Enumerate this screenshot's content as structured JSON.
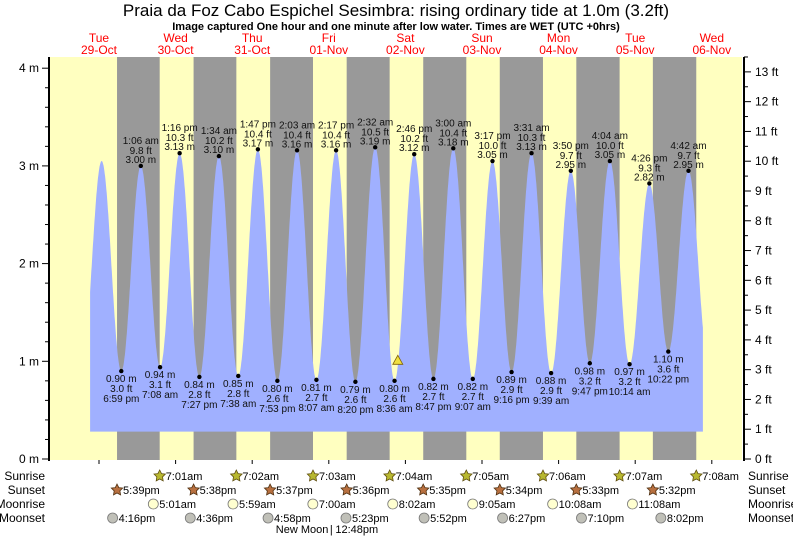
{
  "title": "Praia da Foz Cabo Espichel Sesimbra: rising  ordinary tide at 1.0m (3.2ft)",
  "subtitle": "Image captured One hour and one minute after low water. Times are WET (UTC +0hrs)",
  "colors": {
    "day": "#ffffc0",
    "night": "#999999",
    "tide": "#a0b0ff",
    "date_label": "#ff0000",
    "sunrise": "#b8b830",
    "sunset": "#b87040",
    "moonrise": "#ffffd0",
    "moonset": "#c0c0b8"
  },
  "chart_data": {
    "type": "area",
    "title": "Praia da Foz Cabo Espichel Sesimbra: rising  ordinary tide at 1.0m (3.2ft)",
    "days": [
      {
        "dow": "Tue",
        "date": "29-Oct"
      },
      {
        "dow": "Wed",
        "date": "30-Oct"
      },
      {
        "dow": "Thu",
        "date": "31-Oct"
      },
      {
        "dow": "Fri",
        "date": "01-Nov"
      },
      {
        "dow": "Sat",
        "date": "02-Nov"
      },
      {
        "dow": "Sun",
        "date": "03-Nov"
      },
      {
        "dow": "Mon",
        "date": "04-Nov"
      },
      {
        "dow": "Tue",
        "date": "05-Nov"
      },
      {
        "dow": "Wed",
        "date": "06-Nov"
      }
    ],
    "y_left": {
      "unit": "m",
      "range": [
        0,
        4
      ],
      "ticks": [
        "0 m",
        "1 m",
        "2 m",
        "3 m",
        "4 m"
      ]
    },
    "y_right": {
      "unit": "ft",
      "range": [
        0,
        13
      ],
      "ticks": [
        "0 ft",
        "1 ft",
        "2 ft",
        "3 ft",
        "4 ft",
        "5 ft",
        "6 ft",
        "7 ft",
        "8 ft",
        "9 ft",
        "10 ft",
        "11 ft",
        "12 ft",
        "13 ft"
      ]
    },
    "curve_range_hours": [
      9.2,
      201.2
    ],
    "unlabeled_extrema": [
      {
        "type": "low",
        "day": 0,
        "time": "6:40 am",
        "m": 0.95
      },
      {
        "type": "high",
        "day": 0,
        "time": "12:50 pm",
        "m": 3.05
      },
      {
        "type": "low",
        "day": 8,
        "time": "10:55 am",
        "m": 1.0
      }
    ],
    "extrema": [
      {
        "type": "low",
        "day": 0,
        "time": "6:59 pm",
        "m": "0.90 m",
        "ft": "3.0 ft",
        "value": 0.9
      },
      {
        "type": "high",
        "day": 1,
        "time": "1:06 am",
        "m": "3.00 m",
        "ft": "9.8 ft",
        "value": 3.0
      },
      {
        "type": "low",
        "day": 1,
        "time": "7:08 am",
        "m": "0.94 m",
        "ft": "3.1 ft",
        "value": 0.94
      },
      {
        "type": "high",
        "day": 1,
        "time": "1:16 pm",
        "m": "3.13 m",
        "ft": "10.3 ft",
        "value": 3.13
      },
      {
        "type": "low",
        "day": 1,
        "time": "7:27 pm",
        "m": "0.84 m",
        "ft": "2.8 ft",
        "value": 0.84
      },
      {
        "type": "high",
        "day": 2,
        "time": "1:34 am",
        "m": "3.10 m",
        "ft": "10.2 ft",
        "value": 3.1
      },
      {
        "type": "low",
        "day": 2,
        "time": "7:38 am",
        "m": "0.85 m",
        "ft": "2.8 ft",
        "value": 0.85
      },
      {
        "type": "high",
        "day": 2,
        "time": "1:47 pm",
        "m": "3.17 m",
        "ft": "10.4 ft",
        "value": 3.17
      },
      {
        "type": "low",
        "day": 2,
        "time": "7:53 pm",
        "m": "0.80 m",
        "ft": "2.6 ft",
        "value": 0.8
      },
      {
        "type": "high",
        "day": 3,
        "time": "2:03 am",
        "m": "3.16 m",
        "ft": "10.4 ft",
        "value": 3.16
      },
      {
        "type": "low",
        "day": 3,
        "time": "8:07 am",
        "m": "0.81 m",
        "ft": "2.7 ft",
        "value": 0.81
      },
      {
        "type": "high",
        "day": 3,
        "time": "2:17 pm",
        "m": "3.16 m",
        "ft": "10.4 ft",
        "value": 3.16
      },
      {
        "type": "low",
        "day": 3,
        "time": "8:20 pm",
        "m": "0.79 m",
        "ft": "2.6 ft",
        "value": 0.79
      },
      {
        "type": "high",
        "day": 4,
        "time": "2:32 am",
        "m": "3.19 m",
        "ft": "10.5 ft",
        "value": 3.19
      },
      {
        "type": "low",
        "day": 4,
        "time": "8:36 am",
        "m": "0.80 m",
        "ft": "2.6 ft",
        "value": 0.8
      },
      {
        "type": "high",
        "day": 4,
        "time": "2:46 pm",
        "m": "3.12 m",
        "ft": "10.2 ft",
        "value": 3.12
      },
      {
        "type": "low",
        "day": 4,
        "time": "8:47 pm",
        "m": "0.82 m",
        "ft": "2.7 ft",
        "value": 0.82
      },
      {
        "type": "high",
        "day": 5,
        "time": "3:00 am",
        "m": "3.18 m",
        "ft": "10.4 ft",
        "value": 3.18
      },
      {
        "type": "low",
        "day": 5,
        "time": "9:07 am",
        "m": "0.82 m",
        "ft": "2.7 ft",
        "value": 0.82
      },
      {
        "type": "high",
        "day": 5,
        "time": "3:17 pm",
        "m": "3.05 m",
        "ft": "10.0 ft",
        "value": 3.05
      },
      {
        "type": "low",
        "day": 5,
        "time": "9:16 pm",
        "m": "0.89 m",
        "ft": "2.9 ft",
        "value": 0.89
      },
      {
        "type": "high",
        "day": 6,
        "time": "3:31 am",
        "m": "3.13 m",
        "ft": "10.3 ft",
        "value": 3.13
      },
      {
        "type": "low",
        "day": 6,
        "time": "9:39 am",
        "m": "0.88 m",
        "ft": "2.9 ft",
        "value": 0.88
      },
      {
        "type": "high",
        "day": 6,
        "time": "3:50 pm",
        "m": "2.95 m",
        "ft": "9.7 ft",
        "value": 2.95
      },
      {
        "type": "low",
        "day": 6,
        "time": "9:47 pm",
        "m": "0.98 m",
        "ft": "3.2 ft",
        "value": 0.98
      },
      {
        "type": "high",
        "day": 7,
        "time": "4:04 am",
        "m": "3.05 m",
        "ft": "10.0 ft",
        "value": 3.05
      },
      {
        "type": "low",
        "day": 7,
        "time": "10:14 am",
        "m": "0.97 m",
        "ft": "3.2 ft",
        "value": 0.97
      },
      {
        "type": "high",
        "day": 7,
        "time": "4:26 pm",
        "m": "2.82 m",
        "ft": "9.3 ft",
        "value": 2.82
      },
      {
        "type": "low",
        "day": 7,
        "time": "10:22 pm",
        "m": "1.10 m",
        "ft": "3.6 ft",
        "value": 1.1
      },
      {
        "type": "high",
        "day": 8,
        "time": "4:42 am",
        "m": "2.95 m",
        "ft": "9.7 ft",
        "value": 2.95
      }
    ],
    "current": {
      "day": 4,
      "time": "9:37 am",
      "value": 1.0
    },
    "rows": {
      "sunrise": {
        "label": "Sunrise",
        "events": [
          {
            "day": 1,
            "time": "7:01am"
          },
          {
            "day": 2,
            "time": "7:02am"
          },
          {
            "day": 3,
            "time": "7:03am"
          },
          {
            "day": 4,
            "time": "7:04am"
          },
          {
            "day": 5,
            "time": "7:05am"
          },
          {
            "day": 6,
            "time": "7:06am"
          },
          {
            "day": 7,
            "time": "7:07am"
          },
          {
            "day": 8,
            "time": "7:08am"
          }
        ]
      },
      "sunset": {
        "label": "Sunset",
        "events": [
          {
            "day": 0,
            "time": "5:39pm"
          },
          {
            "day": 1,
            "time": "5:38pm"
          },
          {
            "day": 2,
            "time": "5:37pm"
          },
          {
            "day": 3,
            "time": "5:36pm"
          },
          {
            "day": 4,
            "time": "5:35pm"
          },
          {
            "day": 5,
            "time": "5:34pm"
          },
          {
            "day": 6,
            "time": "5:33pm"
          },
          {
            "day": 7,
            "time": "5:32pm"
          }
        ]
      },
      "moonrise": {
        "label": "Moonrise",
        "events": [
          {
            "day": 1,
            "time": "5:01am"
          },
          {
            "day": 2,
            "time": "5:59am"
          },
          {
            "day": 3,
            "time": "7:00am"
          },
          {
            "day": 4,
            "time": "8:02am"
          },
          {
            "day": 5,
            "time": "9:05am"
          },
          {
            "day": 6,
            "time": "10:08am"
          },
          {
            "day": 7,
            "time": "11:08am"
          }
        ]
      },
      "moonset": {
        "label": "Moonset",
        "events": [
          {
            "day": 0,
            "time": "4:16pm"
          },
          {
            "day": 1,
            "time": "4:36pm"
          },
          {
            "day": 2,
            "time": "4:58pm"
          },
          {
            "day": 3,
            "time": "5:23pm"
          },
          {
            "day": 4,
            "time": "5:52pm"
          },
          {
            "day": 5,
            "time": "6:27pm"
          },
          {
            "day": 6,
            "time": "7:10pm"
          },
          {
            "day": 7,
            "time": "8:02pm"
          }
        ]
      }
    },
    "moon_phase": {
      "label": "New Moon",
      "separator": "|",
      "day": 3,
      "time": "12:48pm"
    }
  }
}
